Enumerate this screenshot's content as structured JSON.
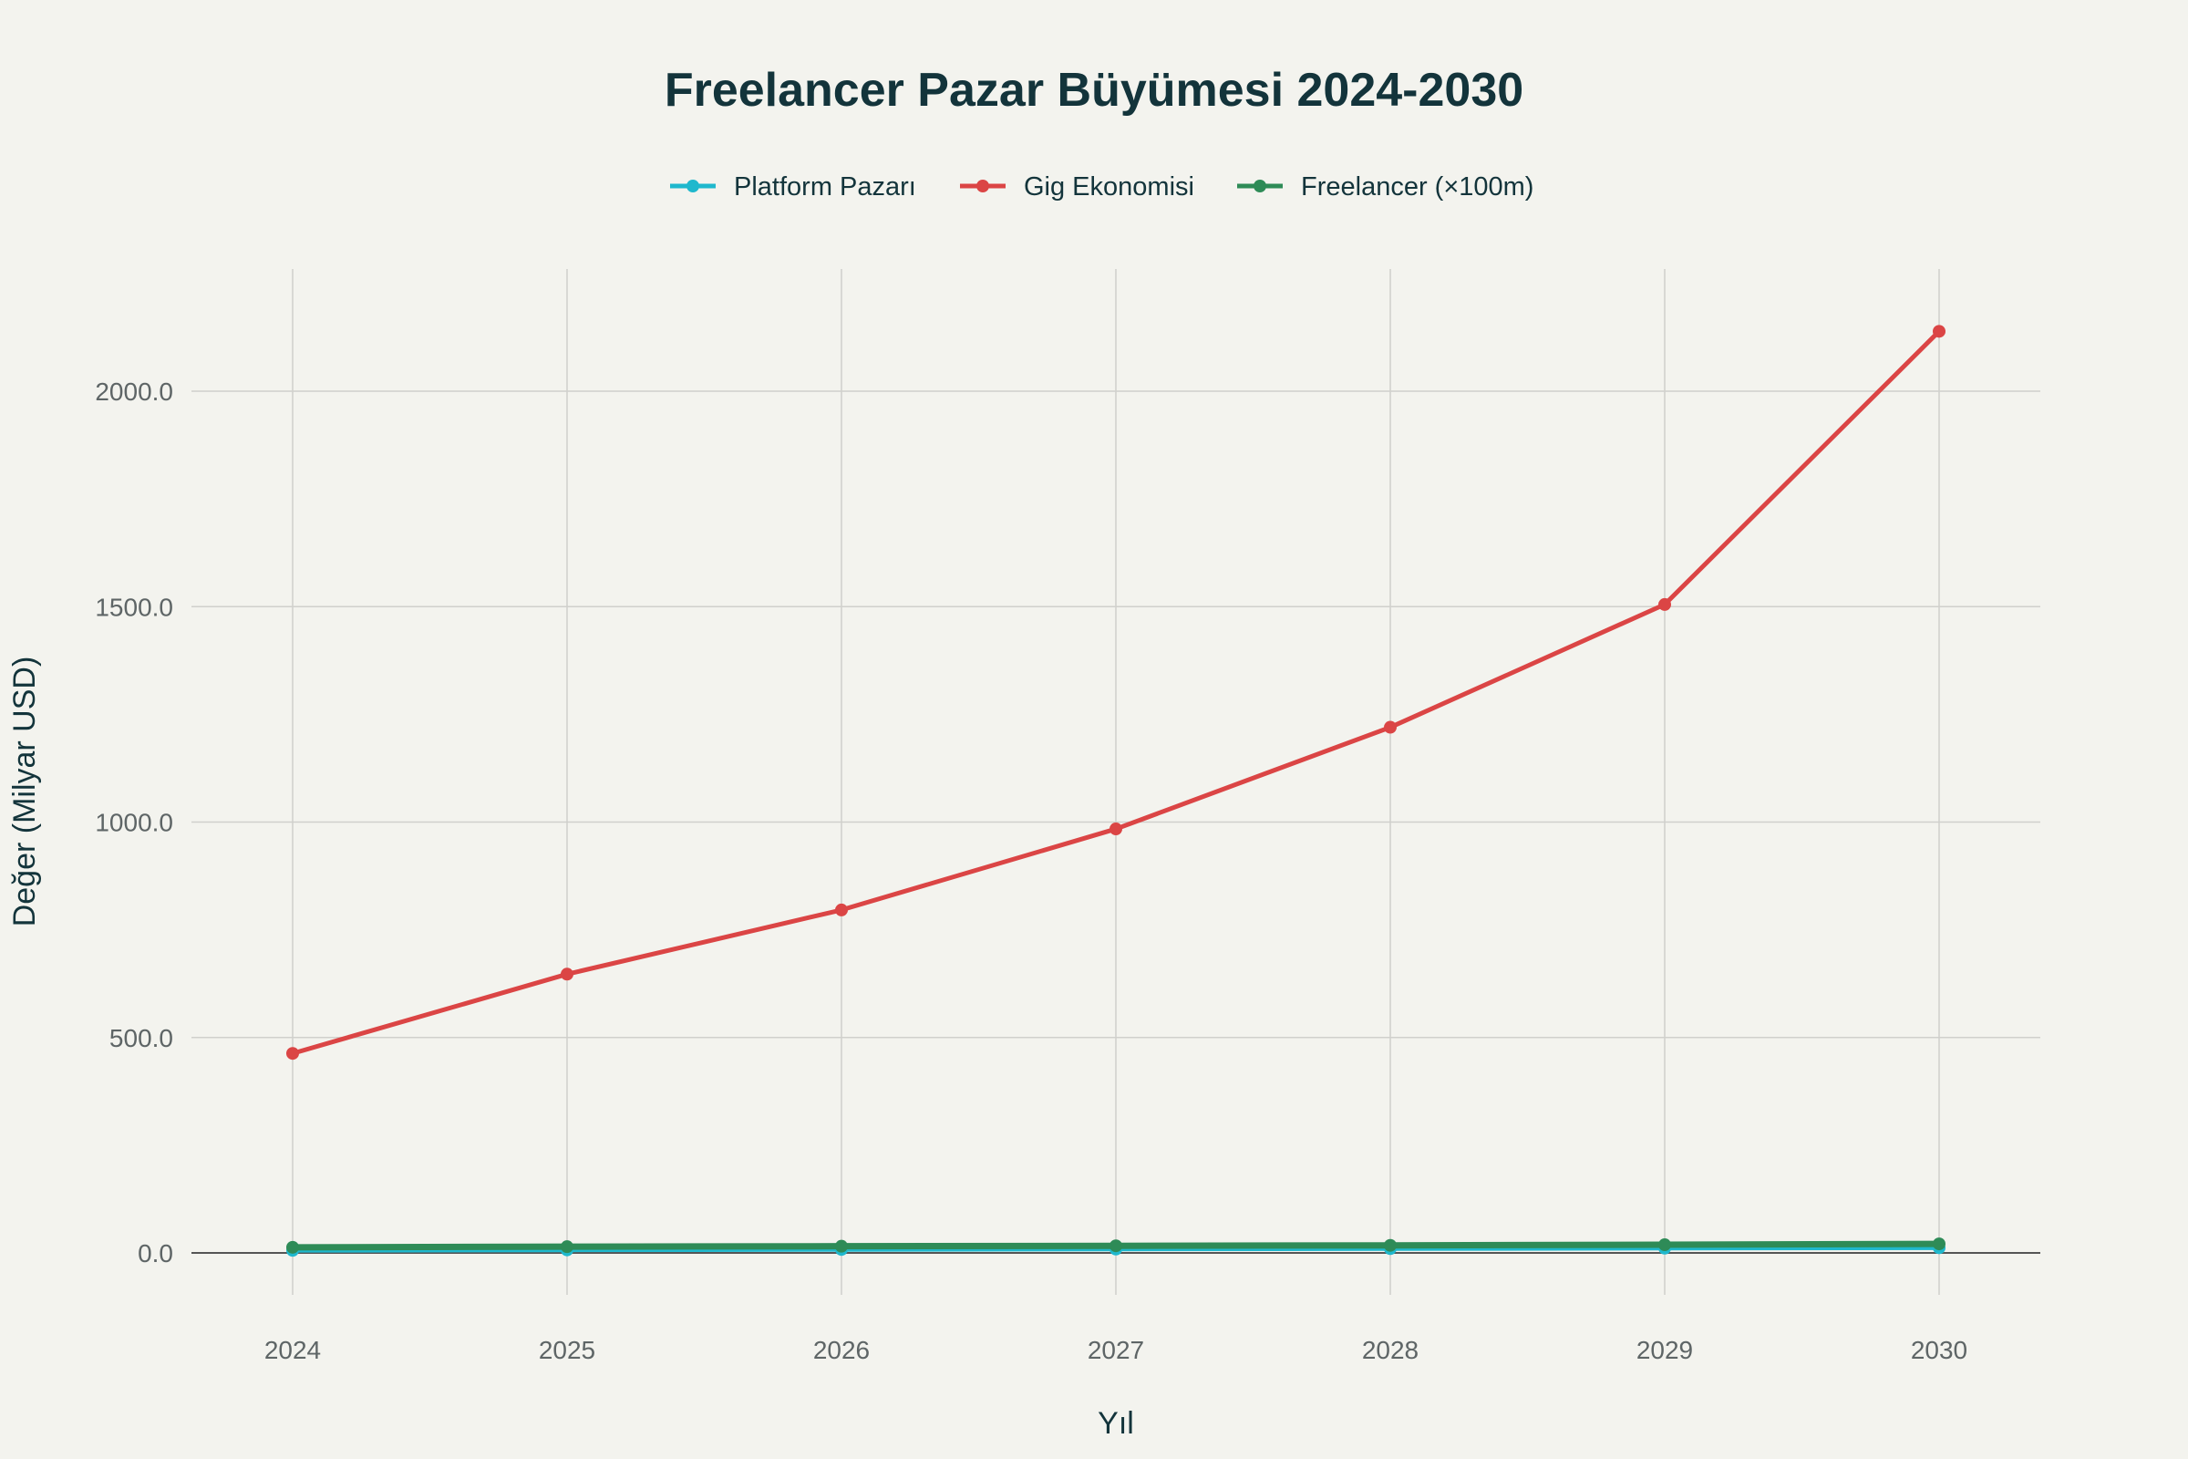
{
  "chart_data": {
    "type": "line",
    "title": "Freelancer Pazar Büyümesi 2024-2030",
    "xlabel": "Yıl",
    "ylabel": "Değer (Milyar USD)",
    "x": [
      2024,
      2025,
      2026,
      2027,
      2028,
      2029,
      2030
    ],
    "x_tick_labels": [
      "2024",
      "2025",
      "2026",
      "2027",
      "2028",
      "2029",
      "2030"
    ],
    "y_ticks": [
      0,
      500,
      1000,
      1500,
      2000
    ],
    "y_tick_labels": [
      "0.0",
      "500.0",
      "1000.0",
      "1500.0",
      "2000.0"
    ],
    "ylim": [
      -90,
      2280
    ],
    "xlim": [
      2023.63,
      2030.37
    ],
    "grid": true,
    "legend_position": "top-center",
    "series": [
      {
        "name": "Platform Pazarı",
        "color": "#1FB8CD",
        "values": [
          6,
          7,
          8,
          9,
          10,
          11,
          12
        ]
      },
      {
        "name": "Gig Ekonomisi",
        "color": "#DB4545",
        "values": [
          463,
          647,
          796,
          984,
          1220,
          1505,
          2139
        ]
      },
      {
        "name": "Freelancer (×100m)",
        "color": "#2E8B57",
        "values": [
          13,
          14.5,
          15.5,
          16.5,
          17.5,
          19,
          21
        ]
      }
    ]
  }
}
